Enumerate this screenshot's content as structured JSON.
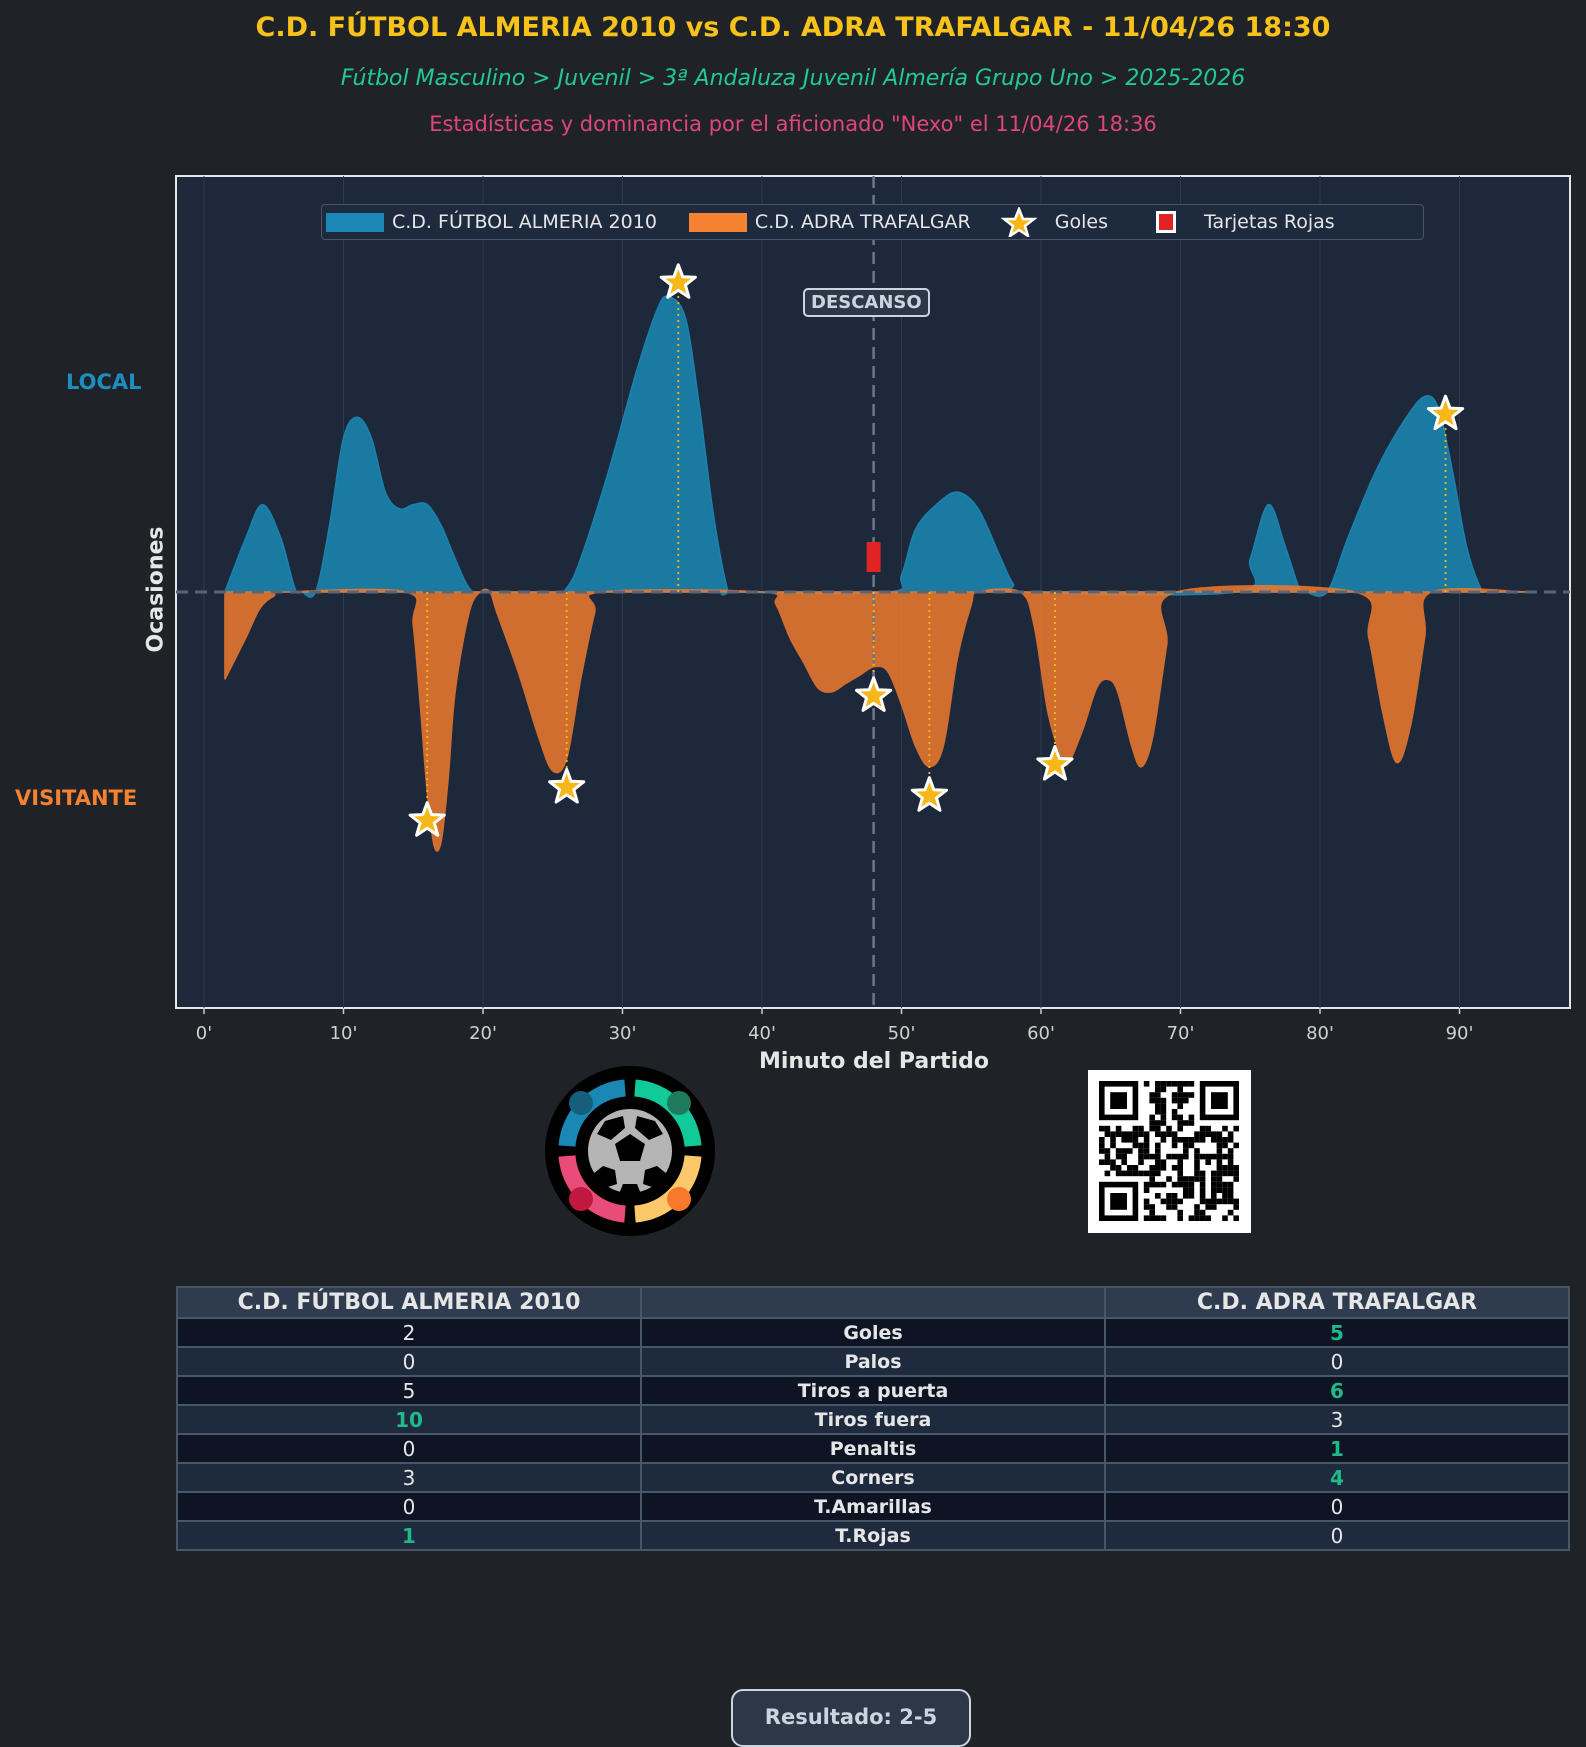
{
  "header": {
    "title": "C.D. FÚTBOL ALMERIA 2010 vs C.D. ADRA TRAFALGAR - 11/04/26 18:30",
    "breadcrumb": "Fútbol Masculino > Juvenil > 3ª Andaluza Juvenil Almería Grupo Uno > 2025-2026",
    "credit": "Estadísticas y dominancia por el aficionado \"Nexo\" el 11/04/26 18:36"
  },
  "chart_data": {
    "type": "area",
    "xlabel": "Minuto del Partido",
    "ylabel": "Ocasiones",
    "y_side_labels": {
      "top": "LOCAL",
      "bottom": "VISITANTE"
    },
    "xlim": [
      -2,
      98
    ],
    "ylim": [
      -1,
      1
    ],
    "xticks": [
      0,
      10,
      20,
      30,
      40,
      50,
      60,
      70,
      80,
      90
    ],
    "xtick_labels": [
      "0'",
      "10'",
      "20'",
      "30'",
      "40'",
      "50'",
      "60'",
      "70'",
      "80'",
      "90'"
    ],
    "grid": "vertical",
    "legend_position": "top-center",
    "legend": [
      "C.D. FÚTBOL ALMERIA 2010",
      "C.D. ADRA TRAFALGAR",
      "Goles",
      "Tarjetas Rojas"
    ],
    "halftime": {
      "minute": 48,
      "label": "DESCANSO"
    },
    "colors": {
      "home": "#1a7fa8",
      "away": "#f07b2e",
      "goal": "#f7b719",
      "red_card": "#e02424",
      "home_label": "#1a8fc0",
      "away_label": "#f58231"
    },
    "series": [
      {
        "name": "C.D. FÚTBOL ALMERIA 2010",
        "x": [
          1.5,
          3,
          4.2,
          5.5,
          6.5,
          7,
          8,
          9,
          10,
          11,
          12,
          13,
          14,
          15,
          16,
          17,
          18,
          19,
          20,
          25,
          26,
          27,
          29,
          31,
          32.5,
          33.3,
          34.5,
          35.5,
          36.5,
          37.5,
          38,
          49,
          50,
          51,
          52.5,
          54,
          55.5,
          57,
          58,
          59,
          74,
          75,
          76.3,
          77.5,
          78.5,
          79,
          80.5,
          82,
          84,
          86,
          87.5,
          88.5,
          89.5,
          90.5,
          91.5,
          92,
          95
        ],
        "y": [
          0,
          0.13,
          0.21,
          0.13,
          0.01,
          0,
          0,
          0.16,
          0.37,
          0.42,
          0.37,
          0.24,
          0.2,
          0.21,
          0.21,
          0.16,
          0.08,
          0.01,
          0,
          0,
          0.01,
          0.08,
          0.29,
          0.53,
          0.68,
          0.71,
          0.66,
          0.45,
          0.19,
          0.01,
          0,
          0,
          0.04,
          0.15,
          0.21,
          0.24,
          0.2,
          0.09,
          0.02,
          0,
          0,
          0.08,
          0.21,
          0.11,
          0.01,
          0,
          0,
          0.13,
          0.29,
          0.41,
          0.47,
          0.44,
          0.29,
          0.11,
          0.01,
          0,
          0
        ]
      },
      {
        "name": "C.D. ADRA TRAFALGAR",
        "x": [
          1.5,
          3,
          4,
          5,
          6,
          14.5,
          15,
          15.5,
          16,
          16.5,
          17,
          17.5,
          18,
          19,
          19.8,
          20.5,
          21,
          22.5,
          24,
          25,
          26,
          27,
          28,
          28.5,
          40,
          41,
          42,
          43,
          44,
          45,
          46,
          47,
          48,
          49,
          50,
          51,
          52,
          53,
          54,
          55,
          55.5,
          58.5,
          59.5,
          60.5,
          61.5,
          62,
          63,
          64,
          64.8,
          65.5,
          66.5,
          67.2,
          68,
          69,
          69.7,
          82.5,
          83.5,
          84.5,
          85.5,
          86.5,
          87.5,
          88,
          95
        ],
        "y": [
          -0.21,
          -0.11,
          -0.04,
          -0.01,
          0,
          0,
          -0.08,
          -0.27,
          -0.48,
          -0.61,
          -0.6,
          -0.45,
          -0.24,
          -0.05,
          0,
          0,
          -0.05,
          -0.19,
          -0.35,
          -0.43,
          -0.4,
          -0.21,
          -0.05,
          0,
          0,
          -0.03,
          -0.11,
          -0.17,
          -0.23,
          -0.24,
          -0.22,
          -0.2,
          -0.18,
          -0.19,
          -0.27,
          -0.37,
          -0.42,
          -0.37,
          -0.16,
          -0.03,
          0,
          0,
          -0.08,
          -0.29,
          -0.4,
          -0.41,
          -0.33,
          -0.23,
          -0.21,
          -0.24,
          -0.37,
          -0.42,
          -0.35,
          -0.13,
          0,
          0,
          -0.11,
          -0.29,
          -0.41,
          -0.32,
          -0.11,
          0,
          0
        ]
      }
    ],
    "goals": [
      {
        "team": "home",
        "minute": 34
      },
      {
        "team": "home",
        "minute": 89
      },
      {
        "team": "away",
        "minute": 16
      },
      {
        "team": "away",
        "minute": 26
      },
      {
        "team": "away",
        "minute": 48
      },
      {
        "team": "away",
        "minute": 52
      },
      {
        "team": "away",
        "minute": 61
      }
    ],
    "red_cards": [
      {
        "team": "home",
        "minute": 48
      }
    ]
  },
  "stats_table": {
    "headers": [
      "C.D. FÚTBOL ALMERIA 2010",
      "",
      "C.D. ADRA TRAFALGAR"
    ],
    "rows": [
      {
        "label": "Goles",
        "home": "2",
        "away": "5",
        "leader": "away"
      },
      {
        "label": "Palos",
        "home": "0",
        "away": "0",
        "leader": ""
      },
      {
        "label": "Tiros a puerta",
        "home": "5",
        "away": "6",
        "leader": "away"
      },
      {
        "label": "Tiros fuera",
        "home": "10",
        "away": "3",
        "leader": "home"
      },
      {
        "label": "Penaltis",
        "home": "0",
        "away": "1",
        "leader": "away"
      },
      {
        "label": "Corners",
        "home": "3",
        "away": "4",
        "leader": "away"
      },
      {
        "label": "T.Amarillas",
        "home": "0",
        "away": "0",
        "leader": ""
      },
      {
        "label": "T.Rojas",
        "home": "1",
        "away": "0",
        "leader": "home"
      }
    ]
  },
  "result": "Resultado: 2-5",
  "logo": {
    "icon": "soccer-ball-community-logo"
  },
  "qr": {
    "icon": "qr-code"
  }
}
